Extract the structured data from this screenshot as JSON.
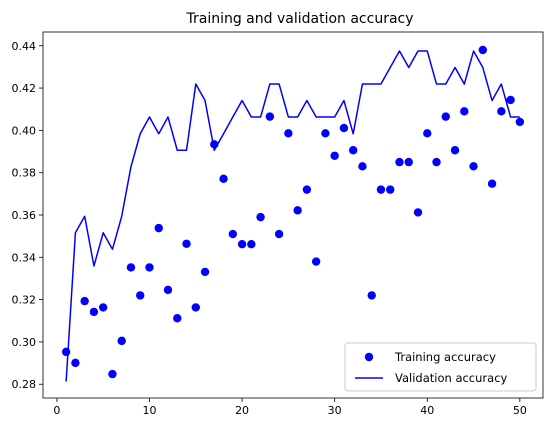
{
  "chart_data": {
    "type": "line+scatter",
    "title": "Training and validation accuracy",
    "xlabel": "",
    "ylabel": "",
    "xlim": [
      -1.5,
      52.5
    ],
    "ylim": [
      0.2735,
      0.4465
    ],
    "xticks": [
      0,
      10,
      20,
      30,
      40,
      50
    ],
    "yticks": [
      0.28,
      0.3,
      0.32,
      0.34,
      0.36,
      0.38,
      0.4,
      0.42,
      0.44
    ],
    "ytick_labels": [
      "0.28",
      "0.30",
      "0.32",
      "0.34",
      "0.36",
      "0.38",
      "0.40",
      "0.42",
      "0.44"
    ],
    "grid": false,
    "legend_position": "lower-right",
    "x": [
      1,
      2,
      3,
      4,
      5,
      6,
      7,
      8,
      9,
      10,
      11,
      12,
      13,
      14,
      15,
      16,
      17,
      18,
      19,
      20,
      21,
      22,
      23,
      24,
      25,
      26,
      27,
      28,
      29,
      30,
      31,
      32,
      33,
      34,
      35,
      36,
      37,
      38,
      39,
      40,
      41,
      42,
      43,
      44,
      45,
      46,
      47,
      48,
      49,
      50
    ],
    "series": [
      {
        "name": "Training accuracy",
        "style": "markers",
        "color": "#0000ff",
        "values": [
          0.2953,
          0.2901,
          0.3193,
          0.3142,
          0.3163,
          0.2848,
          0.3005,
          0.3352,
          0.322,
          0.3352,
          0.3538,
          0.3246,
          0.3112,
          0.3464,
          0.3163,
          0.3331,
          0.3934,
          0.3771,
          0.351,
          0.3462,
          0.3462,
          0.359,
          0.4065,
          0.351,
          0.3986,
          0.3622,
          0.372,
          0.338,
          0.3986,
          0.388,
          0.4011,
          0.3906,
          0.383,
          0.322,
          0.372,
          0.372,
          0.385,
          0.385,
          0.3612,
          0.3986,
          0.385,
          0.4065,
          0.3906,
          0.409,
          0.383,
          0.438,
          0.3748,
          0.409,
          0.4144,
          0.404
        ]
      },
      {
        "name": "Validation accuracy",
        "style": "line",
        "color": "#0000ff",
        "values": [
          0.2813,
          0.3516,
          0.3594,
          0.3359,
          0.3516,
          0.3438,
          0.3594,
          0.3828,
          0.3984,
          0.4063,
          0.3984,
          0.4063,
          0.3906,
          0.3906,
          0.4219,
          0.4141,
          0.3906,
          0.3984,
          0.4063,
          0.4141,
          0.4063,
          0.4063,
          0.4219,
          0.4219,
          0.4063,
          0.4063,
          0.4141,
          0.4063,
          0.4063,
          0.4063,
          0.4141,
          0.3984,
          0.4219,
          0.4219,
          0.4219,
          0.4297,
          0.4375,
          0.4297,
          0.4375,
          0.4375,
          0.4219,
          0.4219,
          0.4297,
          0.4219,
          0.4375,
          0.4297,
          0.4141,
          0.4219,
          0.4063,
          0.4063
        ]
      }
    ]
  }
}
